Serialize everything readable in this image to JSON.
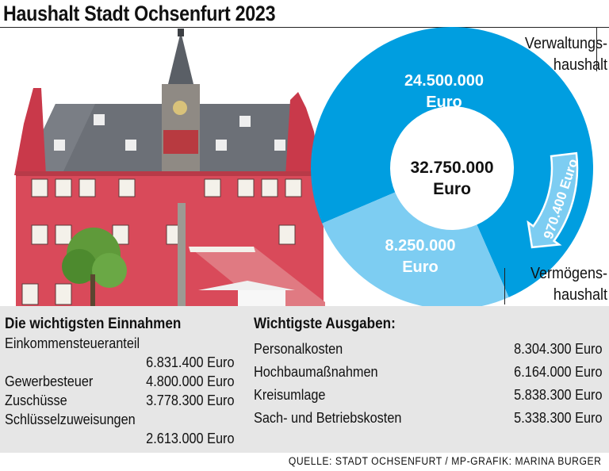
{
  "title": "Haushalt Stadt Ochsenfurt 2023",
  "chart_data": {
    "type": "pie",
    "center_label": [
      "32.750.000",
      "Euro"
    ],
    "slices": [
      {
        "name": "Verwaltungshaushalt",
        "value_label": [
          "24.500.000",
          "Euro"
        ],
        "value": 24500000,
        "color": "#009ee0"
      },
      {
        "name": "Vermögenshaushalt",
        "value_label": [
          "8.250.000",
          "Euro"
        ],
        "value": 8250000,
        "color": "#7dcdf2"
      }
    ],
    "transfer": {
      "label": "970.400 Euro",
      "value": 970400
    },
    "labels": {
      "verw_line1": "Verwaltungs-",
      "verw_line2": "haushalt",
      "verm_line1": "Vermögens-",
      "verm_line2": "haushalt"
    }
  },
  "einnahmen": {
    "heading": "Die wichtigsten Einnahmen",
    "items": [
      {
        "label": "Einkommensteueranteil",
        "value": "6.831.400 Euro",
        "wrap": true
      },
      {
        "label": "Gewerbesteuer",
        "value": "4.800.000 Euro",
        "wrap": false
      },
      {
        "label": "Zuschüsse",
        "value": "3.778.300 Euro",
        "wrap": false
      },
      {
        "label": "Schlüsselzuweisungen",
        "value": "2.613.000 Euro",
        "wrap": true
      }
    ]
  },
  "ausgaben": {
    "heading": "Wichtigste Ausgaben:",
    "items": [
      {
        "label": "Personalkosten",
        "value": "8.304.300 Euro"
      },
      {
        "label": "Hochbaumaßnahmen",
        "value": "6.164.000 Euro"
      },
      {
        "label": "Kreisumlage",
        "value": "5.838.300 Euro"
      },
      {
        "label": "Sach- und Betriebskosten",
        "value": "5.338.300 Euro"
      }
    ]
  },
  "source": "QUELLE: STADT OCHSENFURT / MP-GRAFIK: MARINA BURGER",
  "colors": {
    "main_blue": "#009ee0",
    "light_blue": "#7dcdf2",
    "panel_gray": "#e6e6e6"
  }
}
